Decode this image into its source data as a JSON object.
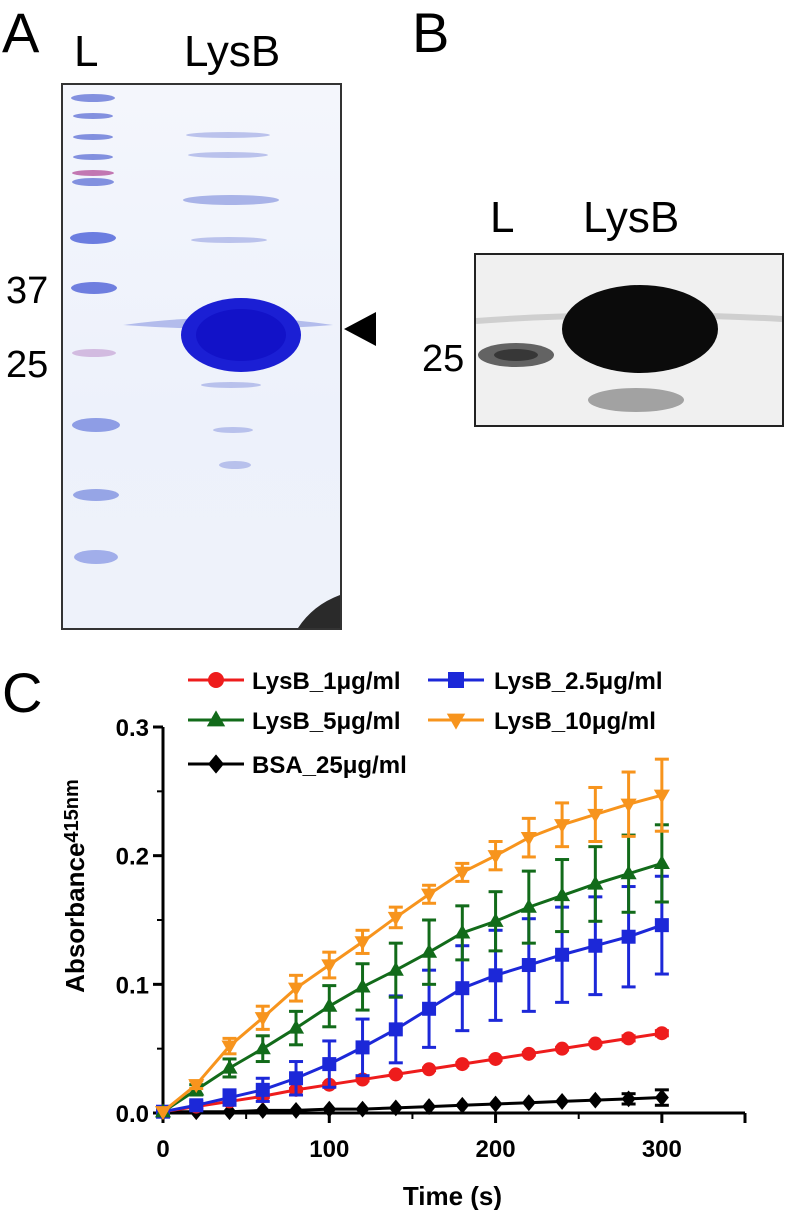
{
  "panels": {
    "a": {
      "letter": "A",
      "lane_ladder": "L",
      "lane_sample": "LysB",
      "mw_37": "37",
      "mw_25": "25"
    },
    "b": {
      "letter": "B",
      "lane_ladder": "L",
      "lane_sample": "LysB",
      "mw_25": "25"
    },
    "c": {
      "letter": "C"
    }
  },
  "chart_data": {
    "type": "line",
    "xlabel": "Time (s)",
    "ylabel_main": "Absorbance",
    "ylabel_sub": "415nm",
    "xlim": [
      0,
      350
    ],
    "ylim": [
      0,
      0.3
    ],
    "x_ticks": [
      0,
      100,
      200,
      300
    ],
    "x_tick_labels": [
      "0",
      "100",
      "200",
      "300"
    ],
    "y_ticks": [
      0,
      0.1,
      0.2,
      0.3
    ],
    "y_tick_labels": [
      "0.0",
      "0.1",
      "0.2",
      "0.3"
    ],
    "grid": false,
    "legend_position": "top",
    "x": [
      0,
      20,
      40,
      60,
      80,
      100,
      120,
      140,
      160,
      180,
      200,
      220,
      240,
      260,
      280,
      300
    ],
    "series": [
      {
        "name": "LysB_1μg/ml",
        "color": "#ee1c1c",
        "marker": "circle",
        "values": [
          0.001,
          0.005,
          0.009,
          0.013,
          0.018,
          0.022,
          0.026,
          0.03,
          0.034,
          0.038,
          0.042,
          0.046,
          0.05,
          0.054,
          0.058,
          0.062
        ],
        "errors": [
          0,
          0.001,
          0.001,
          0.001,
          0.001,
          0.001,
          0.001,
          0.001,
          0.001,
          0.001,
          0.001,
          0.001,
          0.001,
          0.001,
          0.002,
          0.002
        ]
      },
      {
        "name": "LysB_2.5μg/ml",
        "color": "#1c28d8",
        "marker": "square",
        "values": [
          0.001,
          0.006,
          0.012,
          0.018,
          0.027,
          0.038,
          0.051,
          0.065,
          0.081,
          0.097,
          0.107,
          0.115,
          0.123,
          0.13,
          0.137,
          0.146
        ],
        "errors": [
          0,
          0.003,
          0.006,
          0.009,
          0.013,
          0.018,
          0.022,
          0.026,
          0.03,
          0.033,
          0.035,
          0.036,
          0.037,
          0.038,
          0.039,
          0.038
        ]
      },
      {
        "name": "LysB_5μg/ml",
        "color": "#126b1a",
        "marker": "triangle-up",
        "values": [
          0.001,
          0.018,
          0.035,
          0.05,
          0.066,
          0.083,
          0.098,
          0.111,
          0.125,
          0.14,
          0.149,
          0.16,
          0.169,
          0.178,
          0.186,
          0.194
        ],
        "errors": [
          0,
          0.004,
          0.007,
          0.01,
          0.013,
          0.016,
          0.018,
          0.021,
          0.025,
          0.021,
          0.023,
          0.028,
          0.028,
          0.029,
          0.03,
          0.03
        ]
      },
      {
        "name": "LysB_10μg/ml",
        "color": "#f7941d",
        "marker": "triangle-down",
        "values": [
          0.001,
          0.022,
          0.052,
          0.074,
          0.097,
          0.115,
          0.133,
          0.152,
          0.17,
          0.187,
          0.2,
          0.214,
          0.224,
          0.232,
          0.24,
          0.247
        ],
        "errors": [
          0,
          0.003,
          0.006,
          0.009,
          0.01,
          0.01,
          0.009,
          0.008,
          0.007,
          0.007,
          0.011,
          0.015,
          0.017,
          0.021,
          0.025,
          0.028
        ]
      },
      {
        "name": "BSA_25μg/ml",
        "color": "#000000",
        "marker": "diamond",
        "values": [
          0.001,
          0.001,
          0.001,
          0.002,
          0.002,
          0.003,
          0.003,
          0.004,
          0.005,
          0.006,
          0.007,
          0.008,
          0.009,
          0.01,
          0.011,
          0.012
        ],
        "errors": [
          0,
          0,
          0,
          0,
          0,
          0,
          0,
          0,
          0,
          0,
          0,
          0,
          0,
          0,
          0.004,
          0.006
        ]
      }
    ]
  }
}
